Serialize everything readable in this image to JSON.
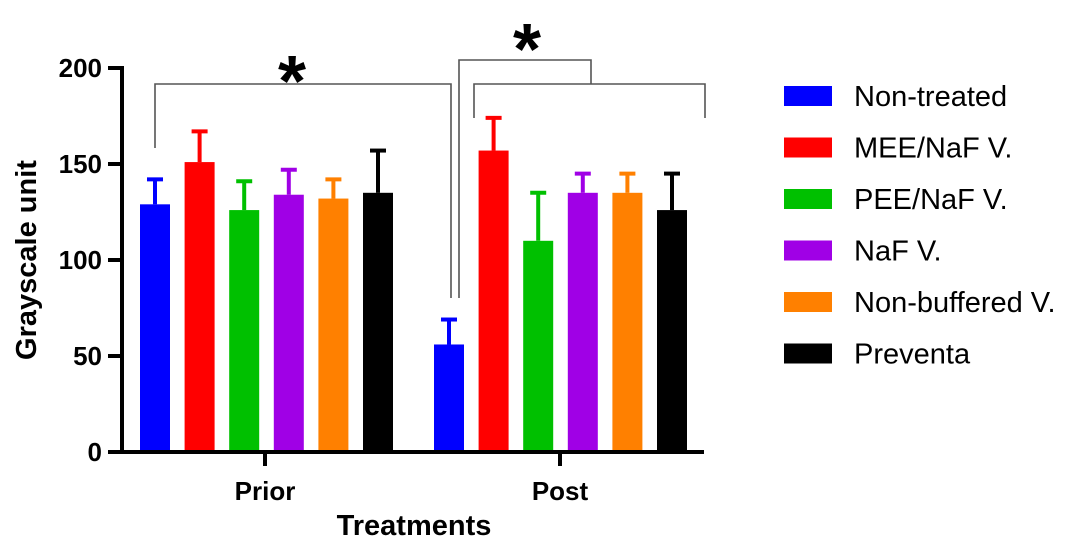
{
  "chart_data": {
    "type": "bar",
    "title": "",
    "xlabel": "Treatments",
    "ylabel": "Grayscale unit",
    "ylim": [
      0,
      200
    ],
    "yticks": [
      0,
      50,
      100,
      150,
      200
    ],
    "categories": [
      "Prior",
      "Post"
    ],
    "legend_position": "right",
    "series": [
      {
        "name": "Non-treated",
        "color": "#0000ff",
        "values": [
          129,
          56
        ],
        "errors": [
          13,
          13
        ]
      },
      {
        "name": "MEE/NaF V.",
        "color": "#ff0000",
        "values": [
          151,
          157
        ],
        "errors": [
          16,
          17
        ]
      },
      {
        "name": "PEE/NaF V.",
        "color": "#00c000",
        "values": [
          126,
          110
        ],
        "errors": [
          15,
          25
        ]
      },
      {
        "name": "NaF V.",
        "color": "#a000e6",
        "values": [
          134,
          135
        ],
        "errors": [
          13,
          10
        ]
      },
      {
        "name": "Non-buffered V.",
        "color": "#ff8000",
        "values": [
          132,
          135
        ],
        "errors": [
          10,
          10
        ]
      },
      {
        "name": "Preventa",
        "color": "#000000",
        "values": [
          135,
          126
        ],
        "errors": [
          22,
          19
        ]
      }
    ],
    "significance": [
      {
        "label": "*",
        "from": {
          "category": "Prior",
          "series": "all"
        },
        "to": {
          "category": "Post",
          "series": "Non-treated"
        }
      },
      {
        "label": "*",
        "from": {
          "category": "Post",
          "series": "Non-treated"
        },
        "to": {
          "category": "Post",
          "series": "MEE/NaF V. to Preventa"
        }
      }
    ]
  }
}
